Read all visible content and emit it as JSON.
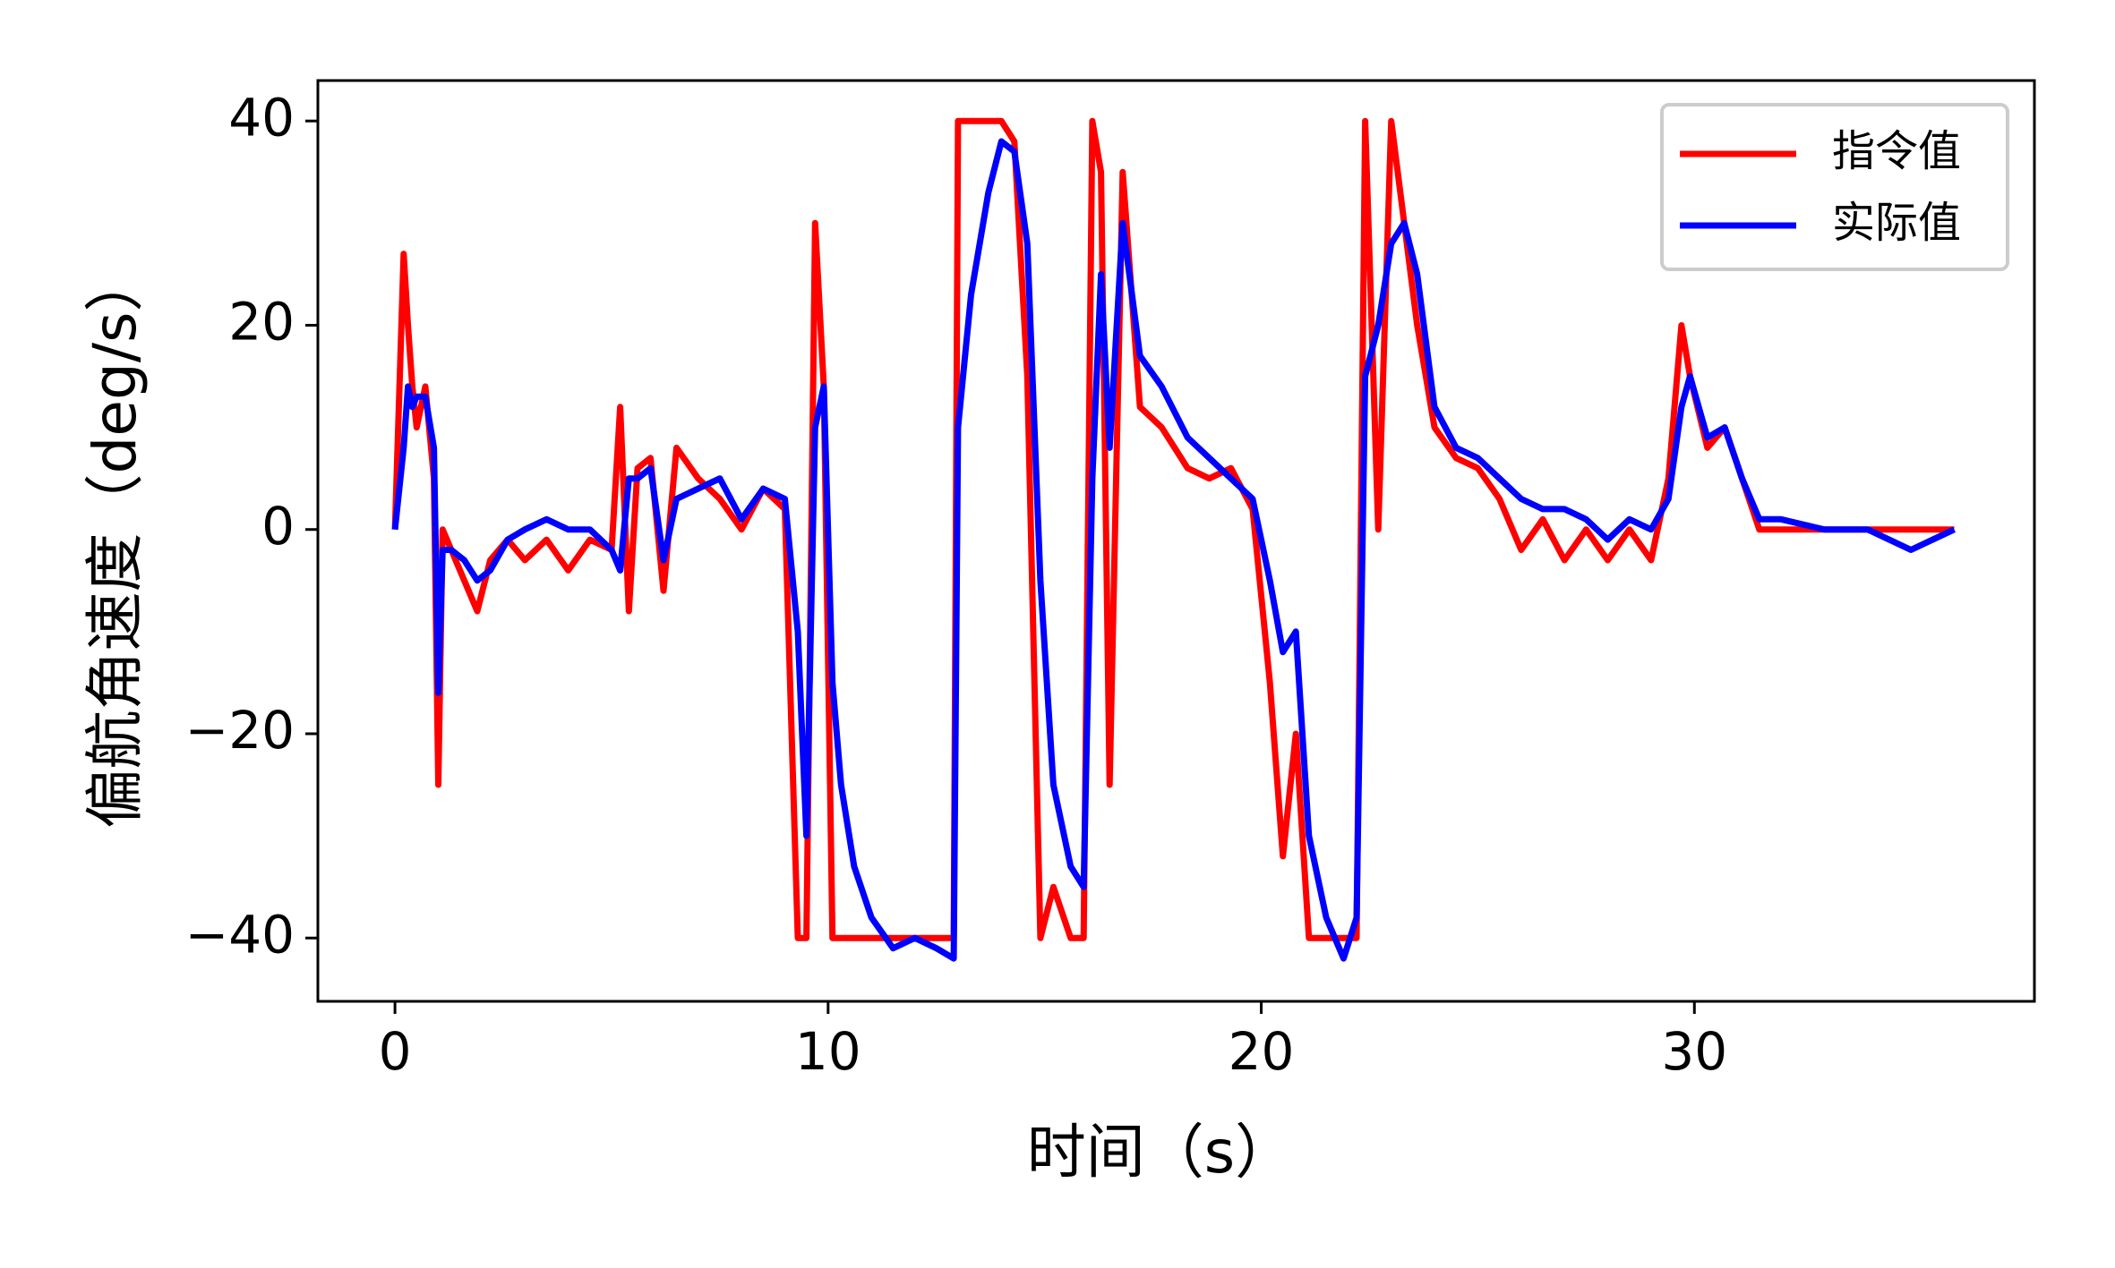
{
  "chart_data": {
    "type": "line",
    "xlabel": "时间（s）",
    "ylabel": "偏航角速度（deg/s）",
    "x": [
      0,
      0.2,
      0.3,
      0.4,
      0.5,
      0.7,
      0.9,
      1.0,
      1.1,
      1.3,
      1.6,
      1.9,
      2.2,
      2.6,
      3.0,
      3.5,
      4.0,
      4.5,
      5.0,
      5.2,
      5.4,
      5.6,
      5.9,
      6.2,
      6.5,
      7.0,
      7.5,
      8.0,
      8.5,
      9.0,
      9.3,
      9.5,
      9.7,
      9.9,
      10.1,
      10.3,
      10.6,
      11.0,
      11.5,
      12.0,
      12.5,
      12.9,
      13.0,
      13.3,
      13.7,
      14.0,
      14.3,
      14.6,
      14.9,
      15.2,
      15.6,
      15.9,
      16.1,
      16.3,
      16.5,
      16.8,
      17.2,
      17.7,
      18.3,
      18.8,
      19.3,
      19.8,
      20.2,
      20.5,
      20.8,
      21.1,
      21.5,
      21.9,
      22.2,
      22.4,
      22.7,
      23.0,
      23.3,
      23.6,
      24.0,
      24.5,
      25.0,
      25.5,
      26.0,
      26.5,
      27.0,
      27.5,
      28.0,
      28.5,
      29.0,
      29.4,
      29.7,
      29.9,
      30.3,
      30.7,
      31.1,
      31.5,
      32.0,
      33.0,
      34.0,
      35.0,
      36.0
    ],
    "series": [
      {
        "name": "指令值",
        "color": "#ff0000",
        "values": [
          0,
          27,
          20,
          14,
          10,
          14,
          5,
          -25,
          0,
          -2,
          -5,
          -8,
          -3,
          -1,
          -3,
          -1,
          -4,
          -1,
          -2,
          12,
          -8,
          6,
          7,
          -6,
          8,
          5,
          3,
          0,
          4,
          2,
          -40,
          -40,
          30,
          14,
          -40,
          -40,
          -40,
          -40,
          -40,
          -40,
          -40,
          -40,
          40,
          40,
          40,
          40,
          38,
          15,
          -40,
          -35,
          -40,
          -40,
          40,
          35,
          -25,
          35,
          12,
          10,
          6,
          5,
          6,
          2,
          -15,
          -32,
          -20,
          -40,
          -40,
          -40,
          -40,
          40,
          0,
          40,
          30,
          20,
          10,
          7,
          6,
          3,
          -2,
          1,
          -3,
          0,
          -3,
          0,
          -3,
          5,
          20,
          15,
          8,
          10,
          5,
          0,
          0,
          0,
          0,
          0,
          0
        ]
      },
      {
        "name": "实际值",
        "color": "#0000ff",
        "values": [
          0,
          8,
          14,
          12,
          13,
          13,
          8,
          -16,
          -2,
          -2,
          -3,
          -5,
          -4,
          -1,
          0,
          1,
          0,
          0,
          -2,
          -4,
          5,
          5,
          6,
          -3,
          3,
          4,
          5,
          1,
          4,
          3,
          -10,
          -30,
          10,
          14,
          -15,
          -25,
          -33,
          -38,
          -41,
          -40,
          -41,
          -42,
          10,
          23,
          33,
          38,
          37,
          28,
          -5,
          -25,
          -33,
          -35,
          5,
          25,
          8,
          30,
          17,
          14,
          9,
          7,
          5,
          3,
          -5,
          -12,
          -10,
          -30,
          -38,
          -42,
          -38,
          15,
          20,
          28,
          30,
          25,
          12,
          8,
          7,
          5,
          3,
          2,
          2,
          1,
          -1,
          1,
          0,
          3,
          12,
          15,
          9,
          10,
          5,
          1,
          1,
          0,
          0,
          -2,
          0
        ]
      }
    ],
    "xlim": [
      -1.78,
      37.85
    ],
    "ylim": [
      -46.2,
      43.96
    ],
    "xticks": [
      0,
      10,
      20,
      30
    ],
    "yticks": [
      {
        "value": -40,
        "label": "−40"
      },
      {
        "value": -20,
        "label": "−20"
      },
      0,
      20,
      40
    ],
    "legend": "upper right"
  }
}
